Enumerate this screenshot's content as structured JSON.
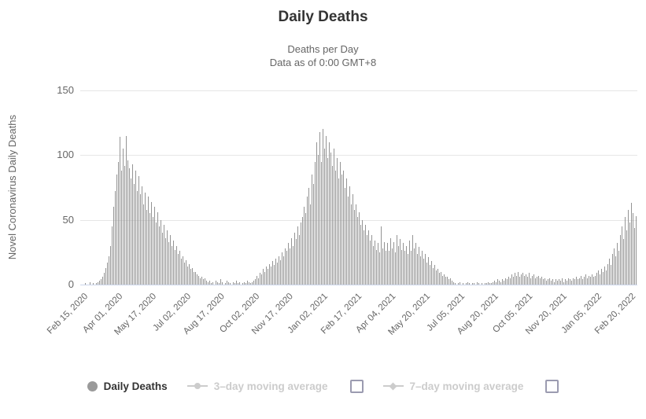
{
  "chart": {
    "title": "Daily Deaths",
    "subtitle_line1": "Deaths per Day",
    "subtitle_line2": "Data as of 0:00 GMT+8",
    "y_axis_title": "Novel Coronavirus Daily Deaths"
  },
  "legend": {
    "daily_deaths_label": "Daily Deaths",
    "avg3_label": "3–day moving average",
    "avg7_label": "7–day moving average",
    "avg3_checkbox_checked": false,
    "avg7_checkbox_checked": false
  },
  "colors": {
    "bar": "#949494",
    "legend_marker": "#9a9a9a",
    "title_text": "#333333",
    "muted_text": "#666666",
    "disabled_legend": "#cccccc",
    "gridline": "#e6e6e6",
    "axis_line": "#ccd6eb",
    "checkbox_border": "#9b9bb0"
  },
  "chart_data": {
    "type": "bar",
    "title": "Daily Deaths",
    "subtitle": "Deaths per Day / Data as of 0:00 GMT+8",
    "xlabel": "",
    "ylabel": "Novel Coronavirus Daily Deaths",
    "ylim": [
      0,
      150
    ],
    "yticks": [
      0,
      50,
      100,
      150
    ],
    "grid": "horizontal-only",
    "legend_position": "bottom",
    "x_range": [
      "Feb 15, 2020",
      "Mar 05, 2022"
    ],
    "x_tick_labels": [
      "Feb 15, 2020",
      "Apr 01, 2020",
      "May 17, 2020",
      "Jul 02, 2020",
      "Aug 17, 2020",
      "Oct 02, 2020",
      "Nov 17, 2020",
      "Jan 02, 2021",
      "Feb 17, 2021",
      "Apr 04, 2021",
      "May 20, 2021",
      "Jul 05, 2021",
      "Aug 20, 2021",
      "Oct 05, 2021",
      "Nov 20, 2021",
      "Jan 05, 2022",
      "Feb 20, 2022"
    ],
    "x_tick_interval_days": 46,
    "x_total_days": 749,
    "series": [
      {
        "name": "Daily Deaths",
        "visible": true,
        "color": "#949494",
        "values": [
          0,
          0,
          0,
          1,
          0,
          0,
          2,
          0,
          1,
          0,
          1,
          2,
          3,
          4,
          6,
          9,
          13,
          17,
          22,
          30,
          45,
          60,
          72,
          85,
          95,
          114,
          88,
          105,
          92,
          115,
          96,
          90,
          82,
          93,
          78,
          88,
          72,
          84,
          70,
          76,
          62,
          71,
          58,
          68,
          55,
          64,
          52,
          60,
          48,
          56,
          45,
          50,
          40,
          46,
          36,
          42,
          33,
          38,
          30,
          34,
          27,
          30,
          24,
          26,
          20,
          22,
          17,
          19,
          14,
          16,
          12,
          13,
          10,
          10,
          8,
          7,
          5,
          6,
          4,
          5,
          3,
          2,
          3,
          1,
          2,
          0,
          3,
          2,
          1,
          4,
          2,
          0,
          1,
          3,
          2,
          1,
          0,
          2,
          1,
          3,
          1,
          2,
          0,
          1,
          2,
          1,
          3,
          2,
          1,
          2,
          3,
          4,
          7,
          5,
          9,
          8,
          12,
          10,
          14,
          12,
          16,
          14,
          18,
          15,
          20,
          17,
          22,
          19,
          25,
          22,
          28,
          26,
          32,
          28,
          36,
          30,
          40,
          35,
          45,
          38,
          48,
          52,
          60,
          55,
          68,
          75,
          62,
          85,
          78,
          95,
          110,
          100,
          118,
          95,
          120,
          105,
          115,
          98,
          110,
          102,
          92,
          105,
          88,
          98,
          82,
          95,
          85,
          88,
          75,
          82,
          68,
          76,
          62,
          70,
          58,
          62,
          52,
          56,
          46,
          50,
          42,
          46,
          38,
          42,
          34,
          38,
          30,
          34,
          27,
          32,
          25,
          45,
          28,
          33,
          26,
          32,
          26,
          36,
          28,
          33,
          25,
          38,
          30,
          35,
          27,
          32,
          26,
          30,
          24,
          34,
          26,
          38,
          28,
          32,
          24,
          29,
          22,
          26,
          20,
          24,
          17,
          21,
          15,
          18,
          13,
          15,
          11,
          12,
          9,
          10,
          7,
          8,
          6,
          6,
          4,
          5,
          3,
          2,
          1,
          0,
          1,
          2,
          0,
          1,
          0,
          1,
          2,
          1,
          0,
          1,
          1,
          0,
          2,
          1,
          0,
          1,
          0,
          1,
          1,
          2,
          1,
          1,
          2,
          3,
          2,
          4,
          3,
          2,
          4,
          3,
          5,
          4,
          6,
          5,
          8,
          6,
          9,
          7,
          10,
          6,
          8,
          9,
          7,
          8,
          6,
          9,
          5,
          7,
          8,
          5,
          6,
          7,
          5,
          6,
          4,
          5,
          3,
          4,
          5,
          3,
          4,
          2,
          4,
          3,
          4,
          3,
          5,
          2,
          4,
          3,
          5,
          4,
          3,
          5,
          4,
          6,
          4,
          5,
          7,
          4,
          6,
          8,
          5,
          7,
          6,
          8,
          6,
          7,
          9,
          11,
          8,
          12,
          10,
          14,
          11,
          16,
          20,
          15,
          24,
          28,
          22,
          32,
          26,
          38,
          45,
          35,
          52,
          42,
          58,
          48,
          63,
          55,
          44,
          53
        ]
      },
      {
        "name": "3–day moving average",
        "visible": false,
        "color": "#cccccc"
      },
      {
        "name": "7–day moving average",
        "visible": false,
        "color": "#cccccc"
      }
    ]
  }
}
